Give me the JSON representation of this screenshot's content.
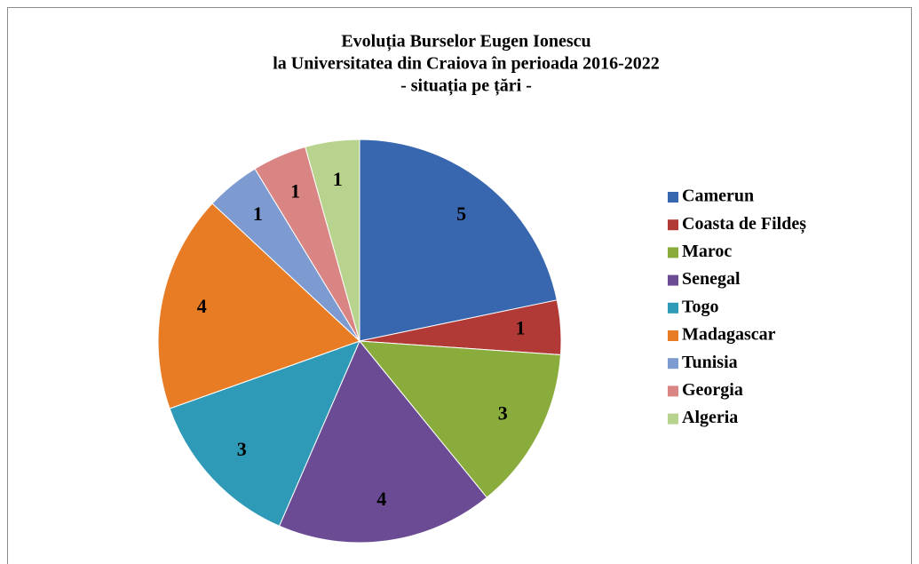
{
  "chart_data": {
    "type": "pie",
    "title": [
      "Evoluția Burselor Eugen Ionescu",
      "la Universitatea din Craiova în perioada 2016-2022",
      "- situația pe țări -"
    ],
    "categories": [
      "Camerun",
      "Coasta de Fildeș",
      "Maroc",
      "Senegal",
      "Togo",
      "Madagascar",
      "Tunisia",
      "Georgia",
      "Algeria"
    ],
    "values": [
      5,
      1,
      3,
      4,
      3,
      4,
      1,
      1,
      1
    ],
    "colors": [
      "#3867b0",
      "#b23a36",
      "#8aac3c",
      "#6b4c94",
      "#2f9ab7",
      "#e87c24",
      "#7d9bd0",
      "#d98584",
      "#b8d38e"
    ],
    "legend": "right"
  }
}
